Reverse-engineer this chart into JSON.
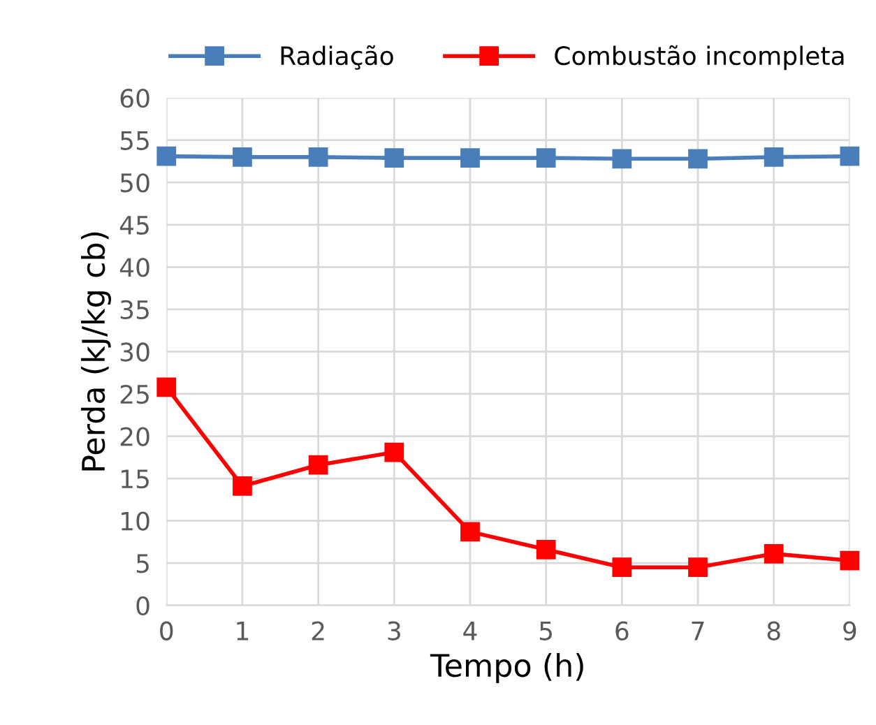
{
  "chart_data": {
    "type": "line",
    "xlabel": "Tempo (h)",
    "ylabel": "Perda (kJ/kg cb)",
    "x": [
      0,
      1,
      2,
      3,
      4,
      5,
      6,
      7,
      8,
      9
    ],
    "series": [
      {
        "name": "Radiação",
        "color": "#4a7ebb",
        "values": [
          53.1,
          53.0,
          53.0,
          52.9,
          52.9,
          52.9,
          52.8,
          52.8,
          53.0,
          53.1
        ]
      },
      {
        "name": "Combustão incompleta",
        "color": "#ff0000",
        "values": [
          25.8,
          14.1,
          16.6,
          18.1,
          8.7,
          6.6,
          4.5,
          4.5,
          6.1,
          5.3
        ]
      }
    ],
    "xlim": [
      0,
      9
    ],
    "xticks": [
      0,
      1,
      2,
      3,
      4,
      5,
      6,
      7,
      8,
      9
    ],
    "ylim": [
      0,
      60
    ],
    "yticks": [
      0,
      5,
      10,
      15,
      20,
      25,
      30,
      35,
      40,
      45,
      50,
      55,
      60
    ],
    "grid": true,
    "legend": "top",
    "marker": "square",
    "line_style": "solid"
  }
}
